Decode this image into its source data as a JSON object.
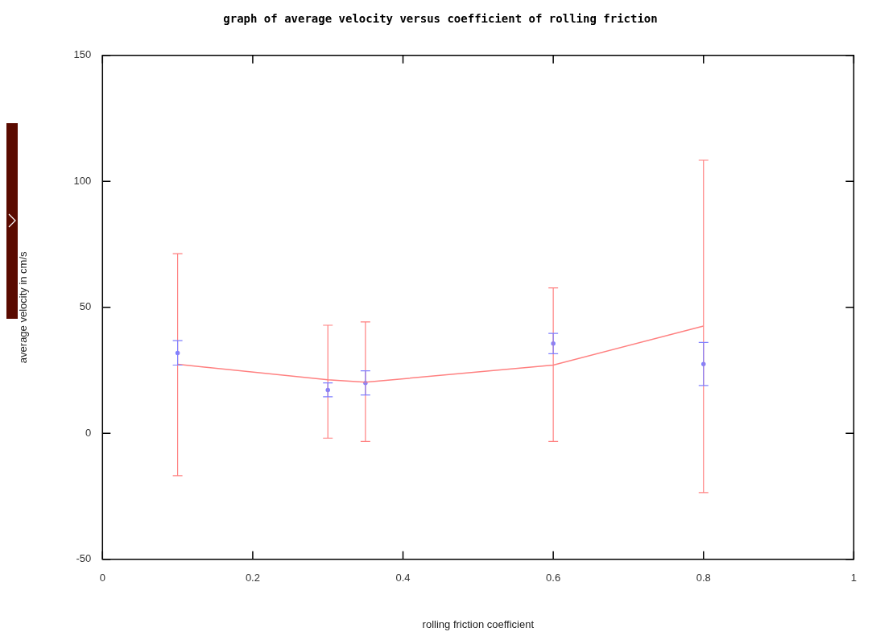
{
  "chart_data": {
    "type": "line",
    "title": "graph of average velocity versus coefficient of rolling friction",
    "xlabel": "rolling friction coefficient",
    "ylabel": "average velocity in cm/s",
    "x": [
      0.1,
      0.3,
      0.35,
      0.6,
      0.8
    ],
    "series": [
      {
        "color": "#ff8080",
        "values": [
          27.4,
          21.3,
          20.3,
          27.1,
          42.6
        ],
        "errors": [
          [
            -16.8,
            71.3
          ],
          [
            -1.9,
            42.9
          ],
          [
            -3.2,
            44.2
          ],
          [
            -3.2,
            57.7
          ],
          [
            -23.5,
            108.4
          ]
        ]
      },
      {
        "type": "scatter",
        "color": "#8080ff",
        "marker": "circle",
        "values": [
          31.9,
          17.2,
          20,
          35.6,
          27.5
        ],
        "errors": [
          [
            27.1,
            36.8
          ],
          [
            14.5,
            20
          ],
          [
            15.2,
            24.8
          ],
          [
            31.6,
            39.7
          ],
          [
            19,
            36.1
          ]
        ]
      }
    ],
    "xlim": [
      0,
      1
    ],
    "xticks": [
      0,
      0.2,
      0.4,
      0.6,
      0.8,
      1
    ],
    "ylim": [
      -50,
      150
    ],
    "yticks": [
      -50,
      0,
      50,
      100,
      150
    ],
    "grid": false,
    "legend": false
  }
}
